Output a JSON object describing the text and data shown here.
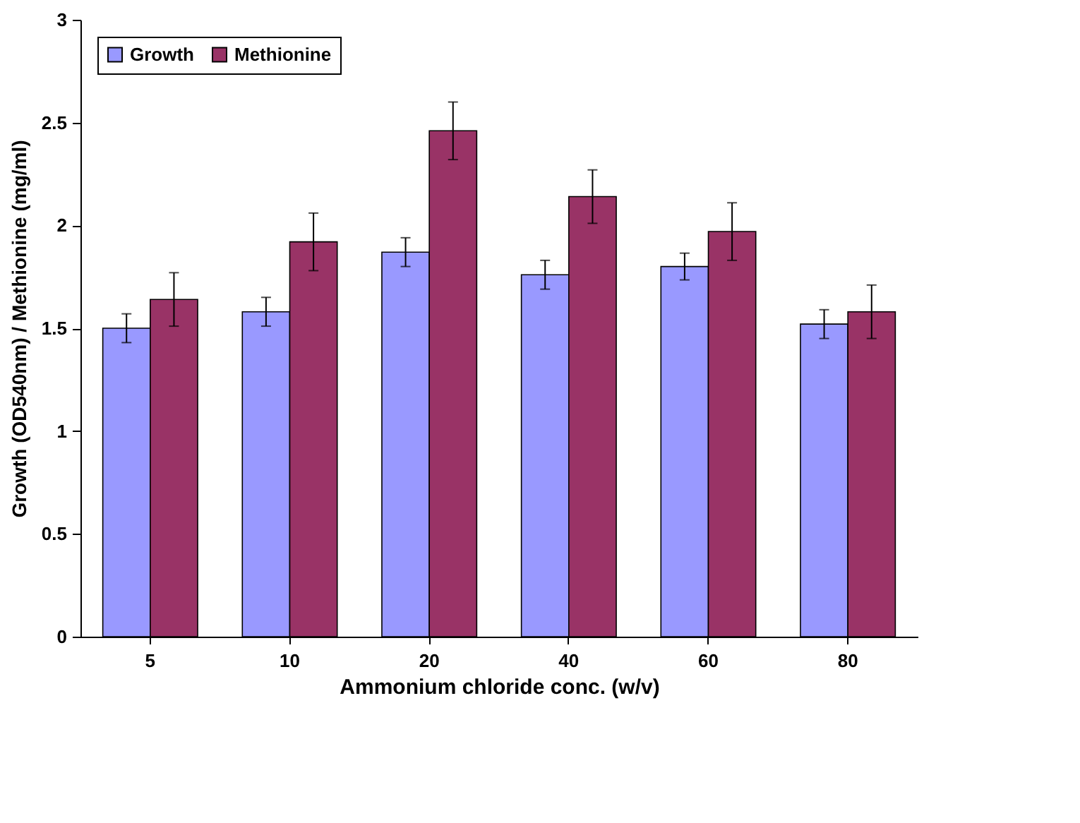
{
  "chart_data": {
    "type": "bar",
    "xlabel": "Ammonium chloride conc. (w/v)",
    "ylabel": "Growth (OD540nm) / Methionine (mg/ml)",
    "categories": [
      "5",
      "10",
      "20",
      "40",
      "60",
      "80"
    ],
    "series": [
      {
        "name": "Growth",
        "color": "#9999ff",
        "values": [
          1.5,
          1.58,
          1.87,
          1.76,
          1.8,
          1.52
        ],
        "errors": [
          0.07,
          0.07,
          0.07,
          0.07,
          0.065,
          0.07
        ]
      },
      {
        "name": "Methionine",
        "color": "#993366",
        "values": [
          1.64,
          1.92,
          2.46,
          2.14,
          1.97,
          1.58
        ],
        "errors": [
          0.13,
          0.14,
          0.14,
          0.13,
          0.14,
          0.13
        ]
      }
    ],
    "ylim": [
      0,
      3
    ],
    "yticks": [
      0,
      0.5,
      1,
      1.5,
      2,
      2.5,
      3
    ],
    "grid": false,
    "legend": "top left"
  }
}
